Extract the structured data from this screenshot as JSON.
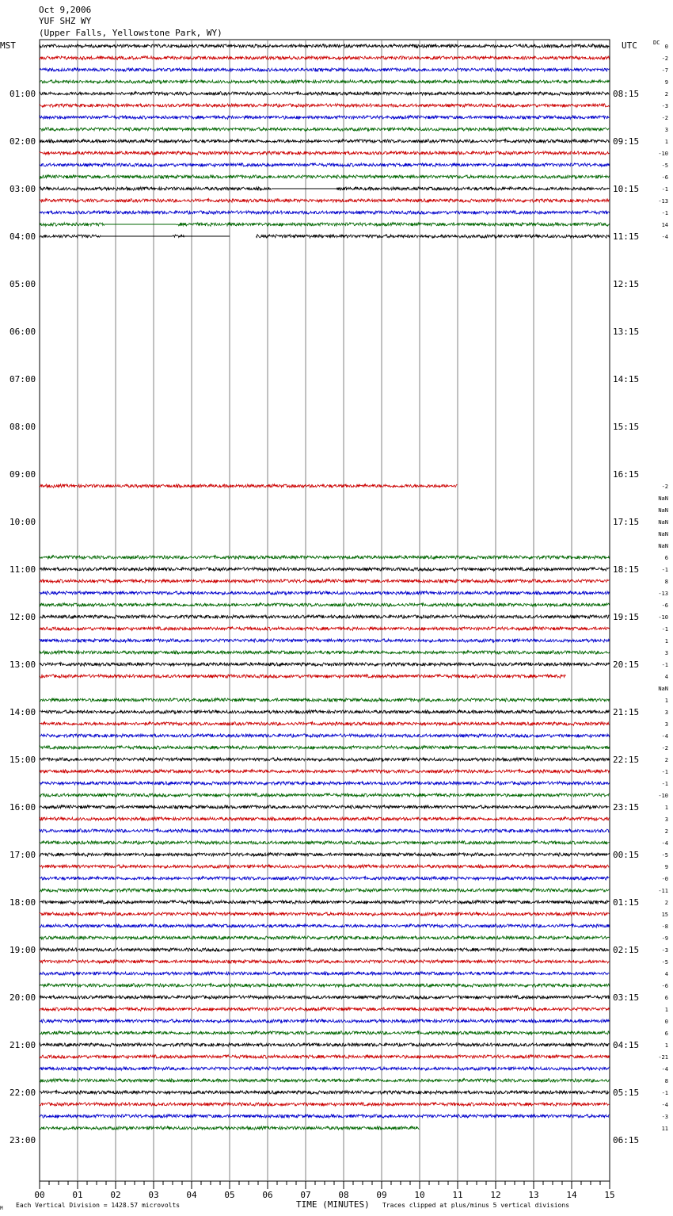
{
  "header": {
    "line1": "Oct 9,2006",
    "line2": "YUF SHZ WY",
    "line3": "(Upper Falls, Yellowstone Park, WY)"
  },
  "left_axis_label": "MST",
  "right_axis_label": "UTC",
  "dc_label": "DC",
  "footer": {
    "scale_note": "Each Vertical Division = 1428.57 microvolts",
    "clip_note": "Traces clipped at plus/minus 5 vertical divisions",
    "corner_mark": "M"
  },
  "colors": {
    "black": "#000000",
    "red": "#cc0000",
    "blue": "#0000cc",
    "green": "#006600",
    "grid": "#808080"
  },
  "chart_data": {
    "type": "line",
    "title": "YUF SHZ WY",
    "xlabel": "TIME (MINUTES)",
    "xlim": [
      0,
      15
    ],
    "x_ticks": [
      "00",
      "01",
      "02",
      "03",
      "04",
      "05",
      "06",
      "07",
      "08",
      "09",
      "10",
      "11",
      "12",
      "13",
      "14",
      "15"
    ],
    "mst_labels": [
      "01:00",
      "02:00",
      "03:00",
      "04:00",
      "05:00",
      "06:00",
      "07:00",
      "08:00",
      "09:00",
      "10:00",
      "11:00",
      "12:00",
      "13:00",
      "14:00",
      "15:00",
      "16:00",
      "17:00",
      "18:00",
      "19:00",
      "20:00",
      "21:00",
      "22:00",
      "23:00"
    ],
    "utc_labels": [
      "08:15",
      "09:15",
      "10:15",
      "11:15",
      "12:15",
      "13:15",
      "14:15",
      "15:15",
      "16:15",
      "17:15",
      "18:15",
      "19:15",
      "20:15",
      "21:15",
      "22:15",
      "23:15",
      "00:15",
      "01:15",
      "02:15",
      "03:15",
      "04:15",
      "05:15",
      "06:15"
    ],
    "trace_colors": [
      "black",
      "red",
      "blue",
      "green"
    ],
    "rows": [
      {
        "dc": "0",
        "segments": [
          [
            0,
            15
          ]
        ]
      },
      {
        "dc": "-2",
        "segments": [
          [
            0,
            15
          ]
        ]
      },
      {
        "dc": "-7",
        "segments": [
          [
            0,
            15
          ]
        ]
      },
      {
        "dc": "9",
        "segments": [
          [
            0,
            15
          ]
        ]
      },
      {
        "dc": "2",
        "segments": [
          [
            0,
            15
          ]
        ]
      },
      {
        "dc": "-3",
        "segments": [
          [
            0,
            15
          ]
        ]
      },
      {
        "dc": "-2",
        "segments": [
          [
            0,
            15
          ]
        ]
      },
      {
        "dc": "3",
        "segments": [
          [
            0,
            15
          ]
        ]
      },
      {
        "dc": "1",
        "segments": [
          [
            0,
            15
          ]
        ]
      },
      {
        "dc": "-10",
        "segments": [
          [
            0,
            15
          ]
        ]
      },
      {
        "dc": "-5",
        "segments": [
          [
            0,
            15
          ]
        ]
      },
      {
        "dc": "-6",
        "segments": [
          [
            0,
            15
          ]
        ]
      },
      {
        "dc": "-1",
        "segments": [
          [
            0,
            6.1
          ]
        ],
        "flat": [
          [
            6.1,
            7.8
          ]
        ],
        "segments2": [
          [
            7.8,
            15
          ]
        ]
      },
      {
        "dc": "-13",
        "segments": [
          [
            0,
            15
          ]
        ]
      },
      {
        "dc": "-1",
        "segments": [
          [
            0,
            15
          ]
        ]
      },
      {
        "dc": "14",
        "segments": [
          [
            0,
            1.7
          ],
          [
            3.6,
            15
          ]
        ],
        "flat": [
          [
            1.7,
            3.6
          ]
        ]
      },
      {
        "dc": "-4",
        "segments": [
          [
            0,
            1.6
          ],
          [
            3.5,
            3.8
          ],
          [
            5.7,
            15
          ]
        ],
        "flat": [
          [
            1.6,
            3.5
          ],
          [
            3.8,
            5.0
          ]
        ]
      },
      {
        "dc": "",
        "segments": []
      },
      {
        "dc": "",
        "segments": []
      },
      {
        "dc": "",
        "segments": []
      },
      {
        "dc": "",
        "segments": []
      },
      {
        "dc": "",
        "segments": []
      },
      {
        "dc": "",
        "segments": []
      },
      {
        "dc": "",
        "segments": []
      },
      {
        "dc": "",
        "segments": []
      },
      {
        "dc": "",
        "segments": []
      },
      {
        "dc": "",
        "segments": []
      },
      {
        "dc": "",
        "segments": []
      },
      {
        "dc": "",
        "segments": []
      },
      {
        "dc": "",
        "segments": []
      },
      {
        "dc": "",
        "segments": []
      },
      {
        "dc": "",
        "segments": []
      },
      {
        "dc": "",
        "segments": []
      },
      {
        "dc": "",
        "segments": []
      },
      {
        "dc": "",
        "segments": []
      },
      {
        "dc": "",
        "segments": []
      },
      {
        "dc": "",
        "segments": []
      },
      {
        "dc": "-2",
        "segments": [
          [
            0,
            11
          ]
        ]
      },
      {
        "dc": "NaN",
        "segments": []
      },
      {
        "dc": "NaN",
        "segments": []
      },
      {
        "dc": "NaN",
        "segments": []
      },
      {
        "dc": "NaN",
        "segments": []
      },
      {
        "dc": "NaN",
        "segments": []
      },
      {
        "dc": "6",
        "segments": [
          [
            0,
            15
          ]
        ]
      },
      {
        "dc": "-1",
        "segments": [
          [
            0,
            15
          ]
        ]
      },
      {
        "dc": "8",
        "segments": [
          [
            0,
            15
          ]
        ]
      },
      {
        "dc": "-13",
        "segments": [
          [
            0,
            15
          ]
        ]
      },
      {
        "dc": "-6",
        "segments": [
          [
            0,
            15
          ]
        ]
      },
      {
        "dc": "-10",
        "segments": [
          [
            0,
            15
          ]
        ]
      },
      {
        "dc": "-1",
        "segments": [
          [
            0,
            15
          ]
        ]
      },
      {
        "dc": "1",
        "segments": [
          [
            0,
            15
          ]
        ]
      },
      {
        "dc": "3",
        "segments": [
          [
            0,
            15
          ]
        ]
      },
      {
        "dc": "-1",
        "segments": [
          [
            0,
            15
          ]
        ]
      },
      {
        "dc": "4",
        "segments": [
          [
            0,
            13.85
          ]
        ]
      },
      {
        "dc": "NaN",
        "segments": []
      },
      {
        "dc": "1",
        "segments": [
          [
            0,
            15
          ]
        ]
      },
      {
        "dc": "3",
        "segments": [
          [
            0,
            15
          ]
        ]
      },
      {
        "dc": "3",
        "segments": [
          [
            0,
            15
          ]
        ]
      },
      {
        "dc": "-4",
        "segments": [
          [
            0,
            15
          ]
        ]
      },
      {
        "dc": "-2",
        "segments": [
          [
            0,
            15
          ]
        ]
      },
      {
        "dc": "2",
        "segments": [
          [
            0,
            15
          ]
        ]
      },
      {
        "dc": "-1",
        "segments": [
          [
            0,
            15
          ]
        ]
      },
      {
        "dc": "-1",
        "segments": [
          [
            0,
            15
          ]
        ]
      },
      {
        "dc": "-10",
        "segments": [
          [
            0,
            15
          ]
        ]
      },
      {
        "dc": "1",
        "segments": [
          [
            0,
            15
          ]
        ]
      },
      {
        "dc": "3",
        "segments": [
          [
            0,
            15
          ]
        ]
      },
      {
        "dc": "2",
        "segments": [
          [
            0,
            15
          ]
        ]
      },
      {
        "dc": "-4",
        "segments": [
          [
            0,
            15
          ]
        ]
      },
      {
        "dc": "-5",
        "segments": [
          [
            0,
            15
          ]
        ]
      },
      {
        "dc": "9",
        "segments": [
          [
            0,
            15
          ]
        ]
      },
      {
        "dc": "-0",
        "segments": [
          [
            0,
            15
          ]
        ]
      },
      {
        "dc": "-11",
        "segments": [
          [
            0,
            15
          ]
        ]
      },
      {
        "dc": "2",
        "segments": [
          [
            0,
            15
          ]
        ]
      },
      {
        "dc": "15",
        "segments": [
          [
            0,
            15
          ]
        ]
      },
      {
        "dc": "-8",
        "segments": [
          [
            0,
            15
          ]
        ]
      },
      {
        "dc": "-9",
        "segments": [
          [
            0,
            15
          ]
        ]
      },
      {
        "dc": "-3",
        "segments": [
          [
            0,
            15
          ]
        ]
      },
      {
        "dc": "-5",
        "segments": [
          [
            0,
            15
          ]
        ]
      },
      {
        "dc": "4",
        "segments": [
          [
            0,
            15
          ]
        ]
      },
      {
        "dc": "-6",
        "segments": [
          [
            0,
            15
          ]
        ]
      },
      {
        "dc": "6",
        "segments": [
          [
            0,
            15
          ]
        ]
      },
      {
        "dc": "1",
        "segments": [
          [
            0,
            15
          ]
        ]
      },
      {
        "dc": "0",
        "segments": [
          [
            0,
            15
          ]
        ]
      },
      {
        "dc": "6",
        "segments": [
          [
            0,
            15
          ]
        ]
      },
      {
        "dc": "1",
        "segments": [
          [
            0,
            15
          ]
        ]
      },
      {
        "dc": "-21",
        "segments": [
          [
            0,
            15
          ]
        ]
      },
      {
        "dc": "-4",
        "segments": [
          [
            0,
            15
          ]
        ]
      },
      {
        "dc": "8",
        "segments": [
          [
            0,
            15
          ]
        ]
      },
      {
        "dc": "-1",
        "segments": [
          [
            0,
            15
          ]
        ]
      },
      {
        "dc": "-4",
        "segments": [
          [
            0,
            15
          ]
        ]
      },
      {
        "dc": "-3",
        "segments": [
          [
            0,
            15
          ]
        ]
      },
      {
        "dc": "11",
        "segments": [
          [
            0,
            10
          ]
        ]
      }
    ]
  }
}
